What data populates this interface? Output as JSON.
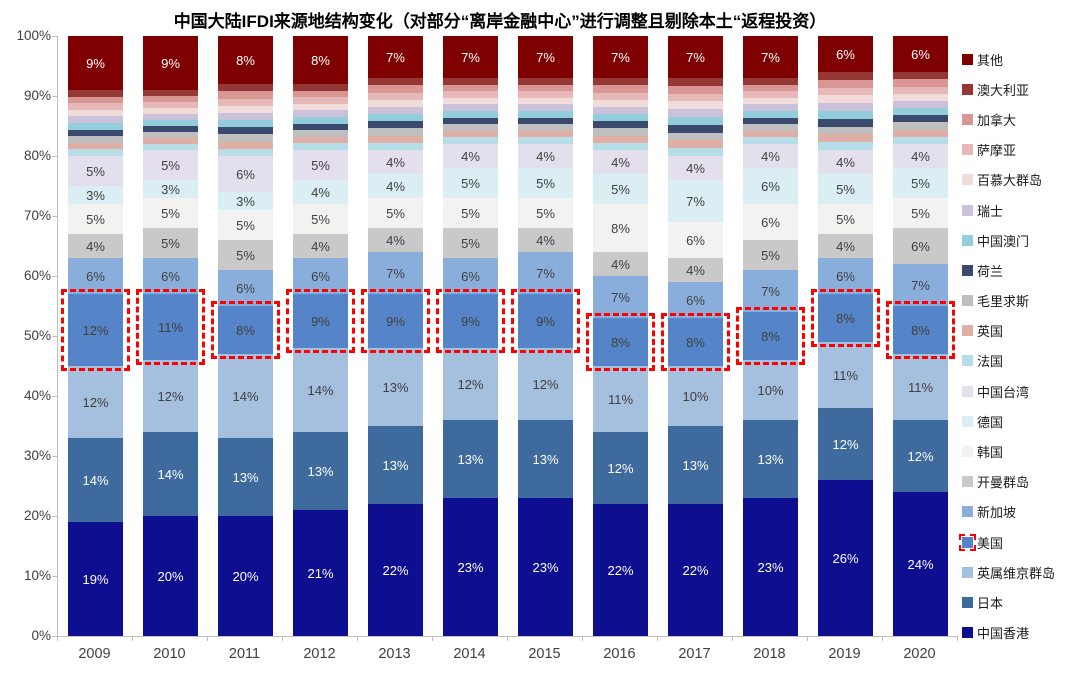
{
  "chart_data": {
    "type": "bar",
    "stacked": true,
    "percent_stacked": true,
    "title": "中国大陆IFDI来源地结构变化（对部分“离岸金融中心”进行调整且剔除本土“返程投资）",
    "categories": [
      "2009",
      "2010",
      "2011",
      "2012",
      "2013",
      "2014",
      "2015",
      "2016",
      "2017",
      "2018",
      "2019",
      "2020"
    ],
    "series": [
      {
        "name": "中国香港",
        "color": "#0E0E90",
        "label_color": "#FFFFFF",
        "values": [
          19,
          20,
          20,
          21,
          22,
          23,
          23,
          22,
          22,
          23,
          26,
          24
        ]
      },
      {
        "name": "日本",
        "color": "#3E6A9E",
        "label_color": "#FFFFFF",
        "values": [
          14,
          14,
          13,
          13,
          13,
          13,
          13,
          12,
          13,
          13,
          12,
          12
        ]
      },
      {
        "name": "英属维京群岛",
        "color": "#A5BFDE",
        "label_color": "#404040",
        "values": [
          12,
          12,
          14,
          14,
          13,
          12,
          12,
          11,
          10,
          10,
          11,
          11
        ]
      },
      {
        "name": "美国",
        "color": "#5585C8",
        "label_color": "#404040",
        "highlight": true,
        "values": [
          12,
          11,
          8,
          9,
          9,
          9,
          9,
          8,
          8,
          8,
          8,
          8
        ]
      },
      {
        "name": "新加坡",
        "color": "#89AEDC",
        "label_color": "#404040",
        "values": [
          6,
          6,
          6,
          6,
          7,
          6,
          7,
          7,
          6,
          7,
          6,
          7
        ]
      },
      {
        "name": "开曼群岛",
        "color": "#C9C9C9",
        "label_color": "#404040",
        "values": [
          4,
          5,
          5,
          4,
          4,
          5,
          4,
          4,
          4,
          5,
          4,
          6
        ]
      },
      {
        "name": "韩国",
        "color": "#F2F2F0",
        "label_color": "#404040",
        "values": [
          5,
          5,
          5,
          5,
          5,
          5,
          5,
          8,
          6,
          6,
          5,
          5
        ]
      },
      {
        "name": "德国",
        "color": "#DAEEF3",
        "label_color": "#404040",
        "values": [
          3,
          3,
          3,
          4,
          4,
          5,
          5,
          5,
          7,
          6,
          5,
          5
        ]
      },
      {
        "name": "中国台湾",
        "color": "#E4DFEC",
        "label_color": "#404040",
        "values": [
          5,
          5,
          6,
          5,
          4,
          4,
          4,
          4,
          4,
          4,
          4,
          4
        ]
      },
      {
        "name": "法国",
        "color": "#B7DEE8",
        "label_color": "#404040",
        "values": [
          1.1,
          1.0,
          1.2,
          1.1,
          1.2,
          1.1,
          1.1,
          1.2,
          1.3,
          1.1,
          1.3,
          1.2
        ]
      },
      {
        "name": "英国",
        "color": "#DFAEA4",
        "label_color": "#404040",
        "values": [
          1.1,
          1.0,
          1.2,
          1.1,
          1.2,
          1.1,
          1.1,
          1.2,
          1.3,
          1.1,
          1.3,
          1.2
        ]
      },
      {
        "name": "毛里求斯",
        "color": "#BFBFBF",
        "label_color": "#404040",
        "values": [
          1.1,
          1.0,
          1.2,
          1.1,
          1.2,
          1.1,
          1.1,
          1.2,
          1.3,
          1.1,
          1.3,
          1.2
        ]
      },
      {
        "name": "荷兰",
        "color": "#3A4A6F",
        "label_color": "#FFFFFF",
        "values": [
          1.1,
          1.0,
          1.2,
          1.1,
          1.2,
          1.1,
          1.1,
          1.2,
          1.3,
          1.1,
          1.3,
          1.2
        ]
      },
      {
        "name": "中国澳门",
        "color": "#92CDDC",
        "label_color": "#404040",
        "values": [
          1.1,
          1.0,
          1.2,
          1.1,
          1.2,
          1.1,
          1.1,
          1.2,
          1.3,
          1.1,
          1.3,
          1.2
        ]
      },
      {
        "name": "瑞士",
        "color": "#CCC1DA",
        "label_color": "#404040",
        "values": [
          1.1,
          1.0,
          1.2,
          1.1,
          1.2,
          1.1,
          1.1,
          1.2,
          1.3,
          1.1,
          1.3,
          1.2
        ]
      },
      {
        "name": "百慕大群岛",
        "color": "#F2DCDB",
        "label_color": "#404040",
        "values": [
          1.1,
          1.0,
          1.2,
          1.1,
          1.2,
          1.1,
          1.1,
          1.2,
          1.3,
          1.1,
          1.3,
          1.2
        ]
      },
      {
        "name": "萨摩亚",
        "color": "#E6B9B8",
        "label_color": "#404040",
        "values": [
          1.1,
          1.0,
          1.2,
          1.1,
          1.2,
          1.1,
          1.1,
          1.2,
          1.3,
          1.1,
          1.3,
          1.2
        ]
      },
      {
        "name": "加拿大",
        "color": "#D99694",
        "label_color": "#404040",
        "values": [
          1.1,
          1.0,
          1.2,
          1.1,
          1.2,
          1.1,
          1.1,
          1.2,
          1.3,
          1.1,
          1.3,
          1.2
        ]
      },
      {
        "name": "澳大利亚",
        "color": "#953735",
        "label_color": "#FFFFFF",
        "values": [
          1.1,
          1.0,
          1.2,
          1.1,
          1.2,
          1.1,
          1.1,
          1.2,
          1.3,
          1.1,
          1.3,
          1.2
        ]
      },
      {
        "name": "其他",
        "color": "#7F0000",
        "label_color": "#FFFFFF",
        "values": [
          9,
          9,
          8,
          8,
          7,
          7,
          7,
          7,
          7,
          7,
          6,
          6
        ]
      }
    ],
    "xlabel": "",
    "ylabel": "",
    "ylim": [
      0,
      100
    ],
    "y_tick_step": 10,
    "y_tick_suffix": "%",
    "label_min_value": 3,
    "label_suffix": "%",
    "grid": false,
    "legend_position": "right",
    "legend_order": "reversed-series",
    "highlight_series": "美国",
    "highlight_color": "#FF0000",
    "axis_color": "#BFBFBF",
    "tick_label_color": "#404040"
  }
}
